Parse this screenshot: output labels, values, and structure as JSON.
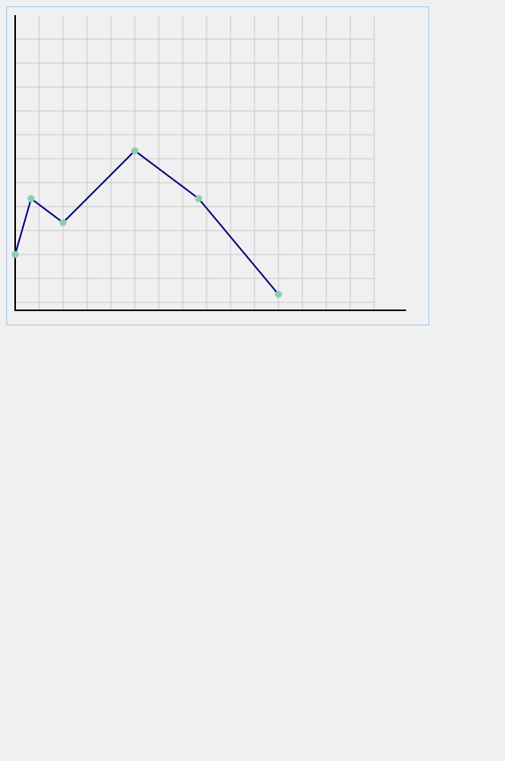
{
  "chart_data": {
    "type": "line",
    "title": "",
    "xlabel": "",
    "ylabel": "",
    "x": [
      0,
      2,
      6,
      15,
      23,
      33
    ],
    "series": [
      {
        "values": [
          7,
          14,
          11,
          20,
          14,
          2
        ]
      }
    ],
    "xlim": [
      0,
      49
    ],
    "ylim": [
      0,
      37
    ],
    "grid": true,
    "legend": "none",
    "colors": {
      "line": "#000080",
      "marker": "#88d1b0",
      "grid": "#c8c8c8",
      "axis": "#000000",
      "panel_border": "#9ec9ee",
      "background": "#f0f0f0"
    }
  }
}
